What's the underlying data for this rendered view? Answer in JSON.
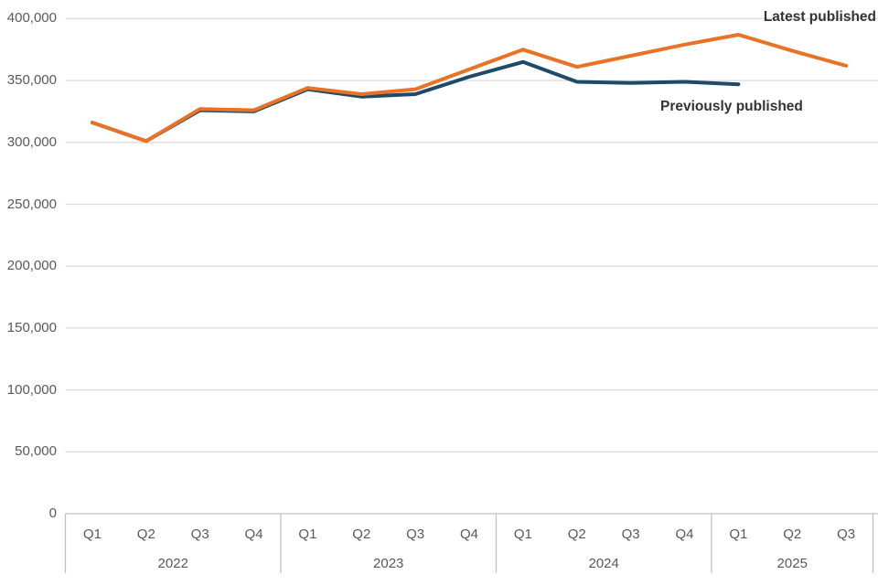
{
  "chart_data": {
    "type": "line",
    "title": "",
    "categories": [
      "Q1 2022",
      "Q2 2022",
      "Q3 2022",
      "Q4 2022",
      "Q1 2023",
      "Q2 2023",
      "Q3 2023",
      "Q4 2023",
      "Q1 2024",
      "Q2 2024",
      "Q3 2024",
      "Q4 2024",
      "Q1 2025",
      "Q2 2025",
      "Q3 2025"
    ],
    "x_axis": {
      "years": [
        {
          "label": "2022",
          "quarters": [
            "Q1",
            "Q2",
            "Q3",
            "Q4"
          ]
        },
        {
          "label": "2023",
          "quarters": [
            "Q1",
            "Q2",
            "Q3",
            "Q4"
          ]
        },
        {
          "label": "2024",
          "quarters": [
            "Q1",
            "Q2",
            "Q3",
            "Q4"
          ]
        },
        {
          "label": "2025",
          "quarters": [
            "Q1",
            "Q2",
            "Q3"
          ]
        }
      ]
    },
    "y_axis": {
      "min": 0,
      "max": 400000,
      "step": 50000,
      "tick_labels": [
        "0",
        "50,000",
        "100,000",
        "150,000",
        "200,000",
        "250,000",
        "300,000",
        "350,000",
        "400,000"
      ]
    },
    "grid": "horizontal",
    "legend_position": "inline-end-of-line-labels",
    "series": [
      {
        "name": "Previously published",
        "color": "#1D4A68",
        "values": [
          316000,
          301000,
          326000,
          325000,
          343000,
          337000,
          339000,
          353000,
          365000,
          349000,
          348000,
          349000,
          347000,
          null,
          null
        ]
      },
      {
        "name": "Latest published",
        "color": "#E97227",
        "values": [
          316000,
          301000,
          327000,
          326000,
          344000,
          339000,
          343000,
          359000,
          375000,
          361000,
          370000,
          379000,
          387000,
          374000,
          362000
        ]
      }
    ]
  },
  "colors": {
    "background": "#FFFFFF",
    "gridline": "#DBDBDB",
    "axis_line": "#C2C2C2",
    "tick_text": "#58595B",
    "annotation_text": "#333333"
  }
}
